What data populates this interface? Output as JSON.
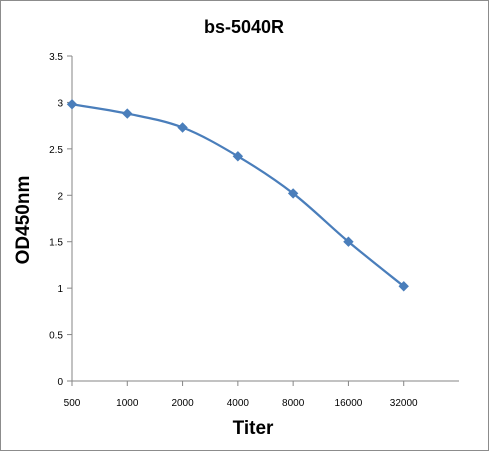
{
  "chart_data": {
    "type": "line",
    "title": "bs-5040R",
    "xlabel": "Titer",
    "ylabel": "OD450nm",
    "categories": [
      "500",
      "1000",
      "2000",
      "4000",
      "8000",
      "16000",
      "32000"
    ],
    "series": [
      {
        "values": [
          2.98,
          2.88,
          2.73,
          2.42,
          2.02,
          1.5,
          1.02
        ],
        "color": "#4a7ebb",
        "marker": "diamond"
      }
    ],
    "ylim": [
      0,
      3.5
    ],
    "yticks": [
      "0",
      "0.5",
      "1",
      "1.5",
      "2",
      "2.5",
      "3",
      "3.5"
    ],
    "grid": false,
    "legend": "none"
  }
}
